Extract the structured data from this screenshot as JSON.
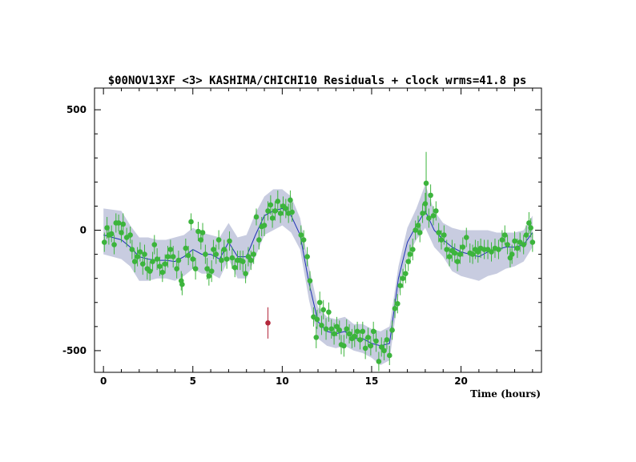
{
  "chart_data": {
    "type": "scatter",
    "title": "$00NOV13XF <3> KASHIMA/CHICHI10 Residuals + clock wrms=41.8  ps",
    "xlabel": "Time (hours)",
    "ylabel": "",
    "xlim": [
      -0.5,
      24.5
    ],
    "ylim": [
      -590,
      590
    ],
    "x_ticks": [
      0,
      5,
      10,
      15,
      20
    ],
    "y_ticks": [
      -500,
      0,
      500
    ],
    "grid": false,
    "colors": {
      "points": "#3cb43c",
      "outlier": "#b4283c",
      "model_line": "#1e32b4",
      "band": "#c8cce0"
    },
    "model_line": {
      "x": [
        0,
        1,
        1.5,
        2,
        2.5,
        3,
        3.5,
        4,
        4.5,
        5,
        5.5,
        6,
        6.5,
        7,
        7.5,
        8,
        8.5,
        9,
        9.5,
        10,
        10.5,
        11,
        11.5,
        12,
        12.5,
        13,
        13.5,
        14,
        14.5,
        15,
        15.5,
        16,
        16.5,
        17,
        17.5,
        18,
        18.5,
        19,
        19.5,
        20,
        20.5,
        21,
        21.5,
        22,
        22.5,
        23,
        23.5,
        24
      ],
      "y": [
        -20,
        -40,
        -70,
        -110,
        -120,
        -125,
        -125,
        -130,
        -110,
        -80,
        -100,
        -100,
        -120,
        -50,
        -110,
        -110,
        -20,
        60,
        80,
        90,
        60,
        -20,
        -220,
        -380,
        -420,
        -430,
        -420,
        -450,
        -450,
        -470,
        -480,
        -470,
        -200,
        -50,
        20,
        80,
        0,
        -40,
        -70,
        -90,
        -100,
        -110,
        -90,
        -80,
        -70,
        -70,
        -60,
        -10
      ]
    },
    "band": {
      "x": [
        0,
        1,
        1.5,
        2,
        2.5,
        3,
        3.5,
        4,
        4.5,
        5,
        5.5,
        6,
        6.5,
        7,
        7.5,
        8,
        8.5,
        9,
        9.5,
        10,
        10.5,
        11,
        11.5,
        12,
        12.5,
        13,
        13.5,
        14,
        14.5,
        15,
        15.5,
        16,
        16.5,
        17,
        17.5,
        18,
        18.5,
        19,
        19.5,
        20,
        20.5,
        21,
        21.5,
        22,
        22.5,
        23,
        23.5,
        24
      ],
      "upper": [
        90,
        80,
        20,
        -30,
        -30,
        -40,
        -40,
        -30,
        -20,
        10,
        -10,
        -20,
        -30,
        30,
        -30,
        -20,
        70,
        140,
        170,
        170,
        140,
        50,
        -150,
        -320,
        -360,
        -370,
        -360,
        -390,
        -390,
        -410,
        -420,
        -400,
        -150,
        10,
        90,
        190,
        80,
        30,
        10,
        0,
        0,
        0,
        0,
        -10,
        -10,
        -10,
        0,
        60
      ],
      "lower": [
        -100,
        -120,
        -150,
        -210,
        -210,
        -200,
        -200,
        -210,
        -190,
        -160,
        -180,
        -180,
        -200,
        -120,
        -200,
        -200,
        -110,
        -20,
        0,
        20,
        -10,
        -80,
        -290,
        -450,
        -480,
        -490,
        -480,
        -500,
        -510,
        -530,
        -560,
        -540,
        -270,
        -110,
        -40,
        10,
        -70,
        -110,
        -170,
        -190,
        -200,
        -210,
        -190,
        -180,
        -160,
        -150,
        -130,
        -70
      ]
    },
    "points": [
      {
        "x": 0.05,
        "y": -50,
        "err": 40
      },
      {
        "x": 0.2,
        "y": 10,
        "err": 45
      },
      {
        "x": 0.3,
        "y": -20,
        "err": 40
      },
      {
        "x": 0.45,
        "y": -15,
        "err": 35
      },
      {
        "x": 0.6,
        "y": -60,
        "err": 40
      },
      {
        "x": 0.7,
        "y": 30,
        "err": 40
      },
      {
        "x": 0.85,
        "y": 30,
        "err": 35
      },
      {
        "x": 1.0,
        "y": -10,
        "err": 40
      },
      {
        "x": 1.1,
        "y": 25,
        "err": 45
      },
      {
        "x": 1.3,
        "y": -30,
        "err": 40
      },
      {
        "x": 1.5,
        "y": -20,
        "err": 35
      },
      {
        "x": 1.6,
        "y": -80,
        "err": 40
      },
      {
        "x": 1.75,
        "y": -130,
        "err": 45
      },
      {
        "x": 1.9,
        "y": -110,
        "err": 40
      },
      {
        "x": 2.05,
        "y": -90,
        "err": 40
      },
      {
        "x": 2.2,
        "y": -140,
        "err": 45
      },
      {
        "x": 2.3,
        "y": -100,
        "err": 40
      },
      {
        "x": 2.45,
        "y": -160,
        "err": 45
      },
      {
        "x": 2.6,
        "y": -170,
        "err": 40
      },
      {
        "x": 2.75,
        "y": -130,
        "err": 40
      },
      {
        "x": 2.85,
        "y": -60,
        "err": 40
      },
      {
        "x": 3.0,
        "y": -120,
        "err": 45
      },
      {
        "x": 3.15,
        "y": -150,
        "err": 40
      },
      {
        "x": 3.3,
        "y": -175,
        "err": 40
      },
      {
        "x": 3.45,
        "y": -140,
        "err": 40
      },
      {
        "x": 3.6,
        "y": -110,
        "err": 45
      },
      {
        "x": 3.75,
        "y": -80,
        "err": 40
      },
      {
        "x": 3.9,
        "y": -110,
        "err": 45
      },
      {
        "x": 4.1,
        "y": -160,
        "err": 40
      },
      {
        "x": 4.2,
        "y": -125,
        "err": 40
      },
      {
        "x": 4.35,
        "y": -210,
        "err": 40
      },
      {
        "x": 4.4,
        "y": -225,
        "err": 45
      },
      {
        "x": 4.6,
        "y": -75,
        "err": 40
      },
      {
        "x": 4.75,
        "y": -105,
        "err": 40
      },
      {
        "x": 4.9,
        "y": 35,
        "err": 35
      },
      {
        "x": 5.0,
        "y": -120,
        "err": 40
      },
      {
        "x": 5.15,
        "y": -160,
        "err": 45
      },
      {
        "x": 5.3,
        "y": -5,
        "err": 40
      },
      {
        "x": 5.45,
        "y": -40,
        "err": 40
      },
      {
        "x": 5.55,
        "y": -10,
        "err": 40
      },
      {
        "x": 5.7,
        "y": -100,
        "err": 40
      },
      {
        "x": 5.8,
        "y": -160,
        "err": 45
      },
      {
        "x": 5.9,
        "y": -190,
        "err": 40
      },
      {
        "x": 6.05,
        "y": -170,
        "err": 45
      },
      {
        "x": 6.15,
        "y": -80,
        "err": 40
      },
      {
        "x": 6.3,
        "y": -100,
        "err": 40
      },
      {
        "x": 6.45,
        "y": -40,
        "err": 40
      },
      {
        "x": 6.6,
        "y": -125,
        "err": 45
      },
      {
        "x": 6.75,
        "y": -80,
        "err": 40
      },
      {
        "x": 6.9,
        "y": -120,
        "err": 40
      },
      {
        "x": 7.05,
        "y": -45,
        "err": 40
      },
      {
        "x": 7.2,
        "y": -115,
        "err": 45
      },
      {
        "x": 7.35,
        "y": -155,
        "err": 40
      },
      {
        "x": 7.5,
        "y": -125,
        "err": 40
      },
      {
        "x": 7.65,
        "y": -125,
        "err": 40
      },
      {
        "x": 7.8,
        "y": -130,
        "err": 45
      },
      {
        "x": 7.95,
        "y": -180,
        "err": 40
      },
      {
        "x": 8.1,
        "y": -110,
        "err": 40
      },
      {
        "x": 8.25,
        "y": -125,
        "err": 40
      },
      {
        "x": 8.4,
        "y": -100,
        "err": 40
      },
      {
        "x": 8.55,
        "y": 55,
        "err": 35
      },
      {
        "x": 8.7,
        "y": -40,
        "err": 40
      },
      {
        "x": 8.85,
        "y": 15,
        "err": 40
      },
      {
        "x": 9.0,
        "y": 20,
        "err": 45
      },
      {
        "x": 9.2,
        "y": 80,
        "err": 40
      },
      {
        "x": 9.35,
        "y": 105,
        "err": 40
      },
      {
        "x": 9.45,
        "y": 50,
        "err": 40
      },
      {
        "x": 9.6,
        "y": 80,
        "err": 40
      },
      {
        "x": 9.75,
        "y": 120,
        "err": 45
      },
      {
        "x": 9.9,
        "y": 70,
        "err": 40
      },
      {
        "x": 10.05,
        "y": 100,
        "err": 40
      },
      {
        "x": 10.2,
        "y": 90,
        "err": 40
      },
      {
        "x": 10.35,
        "y": 70,
        "err": 40
      },
      {
        "x": 10.45,
        "y": 125,
        "err": 40
      },
      {
        "x": 10.55,
        "y": 75,
        "err": 40
      },
      {
        "x": 11.05,
        "y": -20,
        "err": 40
      },
      {
        "x": 11.2,
        "y": -40,
        "err": 40
      },
      {
        "x": 11.4,
        "y": -110,
        "err": 40
      },
      {
        "x": 11.55,
        "y": -210,
        "err": 40
      },
      {
        "x": 11.75,
        "y": -360,
        "err": 40
      },
      {
        "x": 11.9,
        "y": -445,
        "err": 45
      },
      {
        "x": 11.95,
        "y": -370,
        "err": 40
      },
      {
        "x": 12.1,
        "y": -300,
        "err": 45
      },
      {
        "x": 12.2,
        "y": -395,
        "err": 40
      },
      {
        "x": 12.3,
        "y": -330,
        "err": 40
      },
      {
        "x": 12.45,
        "y": -410,
        "err": 45
      },
      {
        "x": 12.6,
        "y": -340,
        "err": 40
      },
      {
        "x": 12.75,
        "y": -410,
        "err": 40
      },
      {
        "x": 12.9,
        "y": -430,
        "err": 45
      },
      {
        "x": 13.05,
        "y": -400,
        "err": 40
      },
      {
        "x": 13.2,
        "y": -415,
        "err": 40
      },
      {
        "x": 13.3,
        "y": -475,
        "err": 40
      },
      {
        "x": 13.45,
        "y": -480,
        "err": 45
      },
      {
        "x": 13.6,
        "y": -410,
        "err": 40
      },
      {
        "x": 13.75,
        "y": -430,
        "err": 40
      },
      {
        "x": 13.9,
        "y": -450,
        "err": 40
      },
      {
        "x": 14.05,
        "y": -440,
        "err": 45
      },
      {
        "x": 14.2,
        "y": -420,
        "err": 40
      },
      {
        "x": 14.35,
        "y": -455,
        "err": 40
      },
      {
        "x": 14.5,
        "y": -420,
        "err": 40
      },
      {
        "x": 14.65,
        "y": -490,
        "err": 45
      },
      {
        "x": 14.8,
        "y": -445,
        "err": 40
      },
      {
        "x": 14.95,
        "y": -480,
        "err": 40
      },
      {
        "x": 15.1,
        "y": -420,
        "err": 40
      },
      {
        "x": 15.25,
        "y": -460,
        "err": 45
      },
      {
        "x": 15.4,
        "y": -545,
        "err": 40
      },
      {
        "x": 15.55,
        "y": -485,
        "err": 40
      },
      {
        "x": 15.7,
        "y": -500,
        "err": 40
      },
      {
        "x": 15.85,
        "y": -455,
        "err": 40
      },
      {
        "x": 16.0,
        "y": -520,
        "err": 40
      },
      {
        "x": 16.15,
        "y": -415,
        "err": 40
      },
      {
        "x": 16.3,
        "y": -325,
        "err": 40
      },
      {
        "x": 16.45,
        "y": -305,
        "err": 40
      },
      {
        "x": 16.6,
        "y": -230,
        "err": 40
      },
      {
        "x": 16.75,
        "y": -200,
        "err": 40
      },
      {
        "x": 16.9,
        "y": -180,
        "err": 40
      },
      {
        "x": 17.05,
        "y": -130,
        "err": 40
      },
      {
        "x": 17.15,
        "y": -100,
        "err": 40
      },
      {
        "x": 17.3,
        "y": -80,
        "err": 45
      },
      {
        "x": 17.45,
        "y": 0,
        "err": 40
      },
      {
        "x": 17.6,
        "y": 20,
        "err": 40
      },
      {
        "x": 17.7,
        "y": -10,
        "err": 40
      },
      {
        "x": 17.85,
        "y": 70,
        "err": 40
      },
      {
        "x": 18.0,
        "y": 110,
        "err": 45
      },
      {
        "x": 18.05,
        "y": 195,
        "err": 130
      },
      {
        "x": 18.2,
        "y": 50,
        "err": 40
      },
      {
        "x": 18.3,
        "y": 145,
        "err": 45
      },
      {
        "x": 18.45,
        "y": 60,
        "err": 40
      },
      {
        "x": 18.6,
        "y": 80,
        "err": 40
      },
      {
        "x": 18.75,
        "y": -10,
        "err": 40
      },
      {
        "x": 18.9,
        "y": -40,
        "err": 40
      },
      {
        "x": 19.05,
        "y": -20,
        "err": 40
      },
      {
        "x": 19.2,
        "y": -80,
        "err": 40
      },
      {
        "x": 19.35,
        "y": -110,
        "err": 40
      },
      {
        "x": 19.5,
        "y": -85,
        "err": 45
      },
      {
        "x": 19.65,
        "y": -95,
        "err": 40
      },
      {
        "x": 19.8,
        "y": -130,
        "err": 40
      },
      {
        "x": 19.95,
        "y": -100,
        "err": 40
      },
      {
        "x": 20.1,
        "y": -70,
        "err": 40
      },
      {
        "x": 20.3,
        "y": -30,
        "err": 40
      },
      {
        "x": 20.5,
        "y": -95,
        "err": 40
      },
      {
        "x": 20.65,
        "y": -100,
        "err": 40
      },
      {
        "x": 20.8,
        "y": -80,
        "err": 40
      },
      {
        "x": 20.95,
        "y": -90,
        "err": 45
      },
      {
        "x": 21.1,
        "y": -75,
        "err": 40
      },
      {
        "x": 21.3,
        "y": -80,
        "err": 40
      },
      {
        "x": 21.5,
        "y": -80,
        "err": 40
      },
      {
        "x": 21.7,
        "y": -90,
        "err": 40
      },
      {
        "x": 21.9,
        "y": -75,
        "err": 40
      },
      {
        "x": 22.1,
        "y": -80,
        "err": 40
      },
      {
        "x": 22.3,
        "y": -40,
        "err": 40
      },
      {
        "x": 22.45,
        "y": -20,
        "err": 40
      },
      {
        "x": 22.6,
        "y": -60,
        "err": 40
      },
      {
        "x": 22.75,
        "y": -115,
        "err": 40
      },
      {
        "x": 22.85,
        "y": -100,
        "err": 40
      },
      {
        "x": 23.0,
        "y": -45,
        "err": 40
      },
      {
        "x": 23.15,
        "y": -75,
        "err": 40
      },
      {
        "x": 23.3,
        "y": -50,
        "err": 40
      },
      {
        "x": 23.5,
        "y": -60,
        "err": 40
      },
      {
        "x": 23.65,
        "y": -20,
        "err": 40
      },
      {
        "x": 23.8,
        "y": 30,
        "err": 45
      },
      {
        "x": 23.9,
        "y": 10,
        "err": 40
      },
      {
        "x": 24.0,
        "y": -50,
        "err": 40
      }
    ],
    "outliers": [
      {
        "x": 9.2,
        "y": -385,
        "err": 65
      }
    ]
  }
}
